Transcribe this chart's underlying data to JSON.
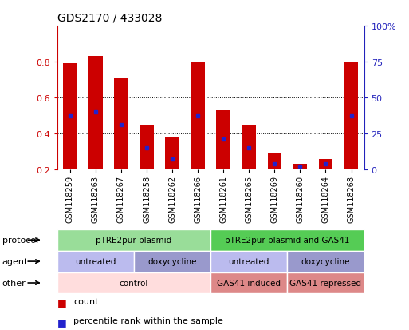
{
  "title": "GDS2170 / 433028",
  "samples": [
    "GSM118259",
    "GSM118263",
    "GSM118267",
    "GSM118258",
    "GSM118262",
    "GSM118266",
    "GSM118261",
    "GSM118265",
    "GSM118269",
    "GSM118260",
    "GSM118264",
    "GSM118268"
  ],
  "red_heights": [
    0.79,
    0.83,
    0.71,
    0.45,
    0.38,
    0.8,
    0.53,
    0.45,
    0.29,
    0.23,
    0.26,
    0.8
  ],
  "blue_positions": [
    0.5,
    0.52,
    0.45,
    0.32,
    0.26,
    0.5,
    0.37,
    0.32,
    0.23,
    0.22,
    0.23,
    0.5
  ],
  "bar_bottom": 0.2,
  "ylim_left": [
    0.2,
    1.0
  ],
  "ylim_right": [
    0,
    100
  ],
  "yticks_left": [
    0.2,
    0.4,
    0.6,
    0.8
  ],
  "yticks_left_labels": [
    "0.2",
    "0.4",
    "0.6",
    "0.8"
  ],
  "yticks_right": [
    0,
    25,
    50,
    75,
    100
  ],
  "yticks_right_labels": [
    "0",
    "25",
    "50",
    "75",
    "100%"
  ],
  "grid_values": [
    0.4,
    0.6,
    0.8
  ],
  "bar_color": "#cc0000",
  "blue_color": "#2222cc",
  "bar_width": 0.55,
  "protocol_groups": [
    {
      "label": "pTRE2pur plasmid",
      "start": 0,
      "end": 5,
      "color": "#99dd99"
    },
    {
      "label": "pTRE2pur plasmid and GAS41",
      "start": 6,
      "end": 11,
      "color": "#55cc55"
    }
  ],
  "agent_groups": [
    {
      "label": "untreated",
      "start": 0,
      "end": 2,
      "color": "#bbbbee"
    },
    {
      "label": "doxycycline",
      "start": 3,
      "end": 5,
      "color": "#9999cc"
    },
    {
      "label": "untreated",
      "start": 6,
      "end": 8,
      "color": "#bbbbee"
    },
    {
      "label": "doxycycline",
      "start": 9,
      "end": 11,
      "color": "#9999cc"
    }
  ],
  "other_groups": [
    {
      "label": "control",
      "start": 0,
      "end": 5,
      "color": "#ffdddd"
    },
    {
      "label": "GAS41 induced",
      "start": 6,
      "end": 8,
      "color": "#dd8888"
    },
    {
      "label": "GAS41 repressed",
      "start": 9,
      "end": 11,
      "color": "#dd8888"
    }
  ],
  "row_labels": [
    "protocol",
    "agent",
    "other"
  ],
  "legend_count_color": "#cc0000",
  "legend_pct_color": "#2222cc",
  "background_color": "#ffffff",
  "left_tick_color": "#cc0000",
  "right_tick_color": "#2222bb",
  "fig_width": 5.13,
  "fig_height": 4.14,
  "dpi": 100
}
